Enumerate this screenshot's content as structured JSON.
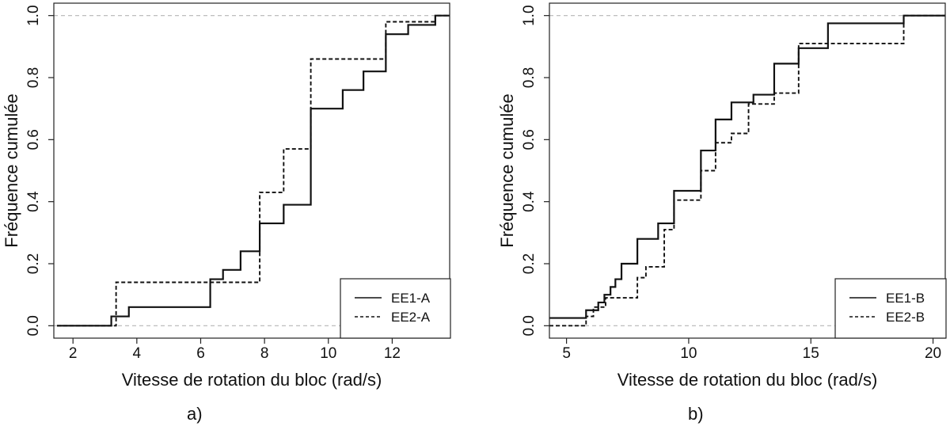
{
  "chart_data": [
    {
      "type": "line",
      "step": true,
      "panel_label": "a)",
      "xlabel": "Vitesse de rotation du bloc (rad/s)",
      "ylabel": "Fréquence cumulée",
      "xlim": [
        1.4,
        13.8
      ],
      "ylim": [
        -0.04,
        1.04
      ],
      "xticks": [
        2,
        4,
        6,
        8,
        10,
        12
      ],
      "yticks": [
        0.0,
        0.2,
        0.4,
        0.6,
        0.8,
        1.0
      ],
      "xtick_labels": [
        "2",
        "4",
        "6",
        "8",
        "10",
        "12"
      ],
      "ytick_labels": [
        "0.0",
        "0.2",
        "0.4",
        "0.6",
        "0.8",
        "1.0"
      ],
      "hlines": [
        0,
        1
      ],
      "legend_position": "bottom-right",
      "series": [
        {
          "name": "EE1-A",
          "style": "solid",
          "steps": [
            [
              1.5,
              0.0
            ],
            [
              3.2,
              0.03
            ],
            [
              3.75,
              0.06
            ],
            [
              6.3,
              0.15
            ],
            [
              6.7,
              0.18
            ],
            [
              7.25,
              0.24
            ],
            [
              7.85,
              0.33
            ],
            [
              8.6,
              0.39
            ],
            [
              9.45,
              0.7
            ],
            [
              10.45,
              0.76
            ],
            [
              11.1,
              0.82
            ],
            [
              11.8,
              0.94
            ],
            [
              12.5,
              0.97
            ],
            [
              13.35,
              1.0
            ],
            [
              13.8,
              1.0
            ]
          ]
        },
        {
          "name": "EE2-A",
          "style": "dashed",
          "steps": [
            [
              1.5,
              0.0
            ],
            [
              3.35,
              0.14
            ],
            [
              7.85,
              0.43
            ],
            [
              8.6,
              0.57
            ],
            [
              9.45,
              0.86
            ],
            [
              11.8,
              0.98
            ],
            [
              13.35,
              1.0
            ],
            [
              13.8,
              1.0
            ]
          ]
        }
      ]
    },
    {
      "type": "line",
      "step": true,
      "panel_label": "b)",
      "xlabel": "Vitesse de rotation du bloc (rad/s)",
      "ylabel": "Fréquence cumulée",
      "xlim": [
        4.3,
        20.5
      ],
      "ylim": [
        -0.04,
        1.04
      ],
      "xticks": [
        5,
        10,
        15,
        20
      ],
      "yticks": [
        0.0,
        0.2,
        0.4,
        0.6,
        0.8,
        1.0
      ],
      "xtick_labels": [
        "5",
        "10",
        "15",
        "20"
      ],
      "ytick_labels": [
        "0.0",
        "0.2",
        "0.4",
        "0.6",
        "0.8",
        "1.0"
      ],
      "hlines": [
        0,
        1
      ],
      "legend_position": "bottom-right",
      "series": [
        {
          "name": "EE1-B",
          "style": "solid",
          "steps": [
            [
              4.3,
              0.025
            ],
            [
              5.8,
              0.05
            ],
            [
              6.3,
              0.075
            ],
            [
              6.55,
              0.1
            ],
            [
              6.8,
              0.125
            ],
            [
              7.0,
              0.15
            ],
            [
              7.25,
              0.2
            ],
            [
              7.9,
              0.28
            ],
            [
              8.75,
              0.33
            ],
            [
              9.4,
              0.435
            ],
            [
              10.5,
              0.565
            ],
            [
              11.1,
              0.665
            ],
            [
              11.75,
              0.72
            ],
            [
              12.65,
              0.745
            ],
            [
              13.5,
              0.845
            ],
            [
              14.5,
              0.895
            ],
            [
              15.7,
              0.975
            ],
            [
              18.8,
              1.0
            ],
            [
              20.5,
              1.0
            ]
          ]
        },
        {
          "name": "EE2-B",
          "style": "dashed",
          "steps": [
            [
              4.3,
              0.0
            ],
            [
              5.8,
              0.03
            ],
            [
              6.1,
              0.06
            ],
            [
              6.6,
              0.09
            ],
            [
              7.9,
              0.155
            ],
            [
              8.25,
              0.19
            ],
            [
              9.0,
              0.31
            ],
            [
              9.4,
              0.405
            ],
            [
              10.5,
              0.5
            ],
            [
              11.1,
              0.59
            ],
            [
              11.75,
              0.62
            ],
            [
              12.45,
              0.715
            ],
            [
              13.5,
              0.75
            ],
            [
              14.5,
              0.91
            ],
            [
              18.8,
              1.0
            ],
            [
              20.5,
              1.0
            ]
          ]
        }
      ]
    }
  ]
}
